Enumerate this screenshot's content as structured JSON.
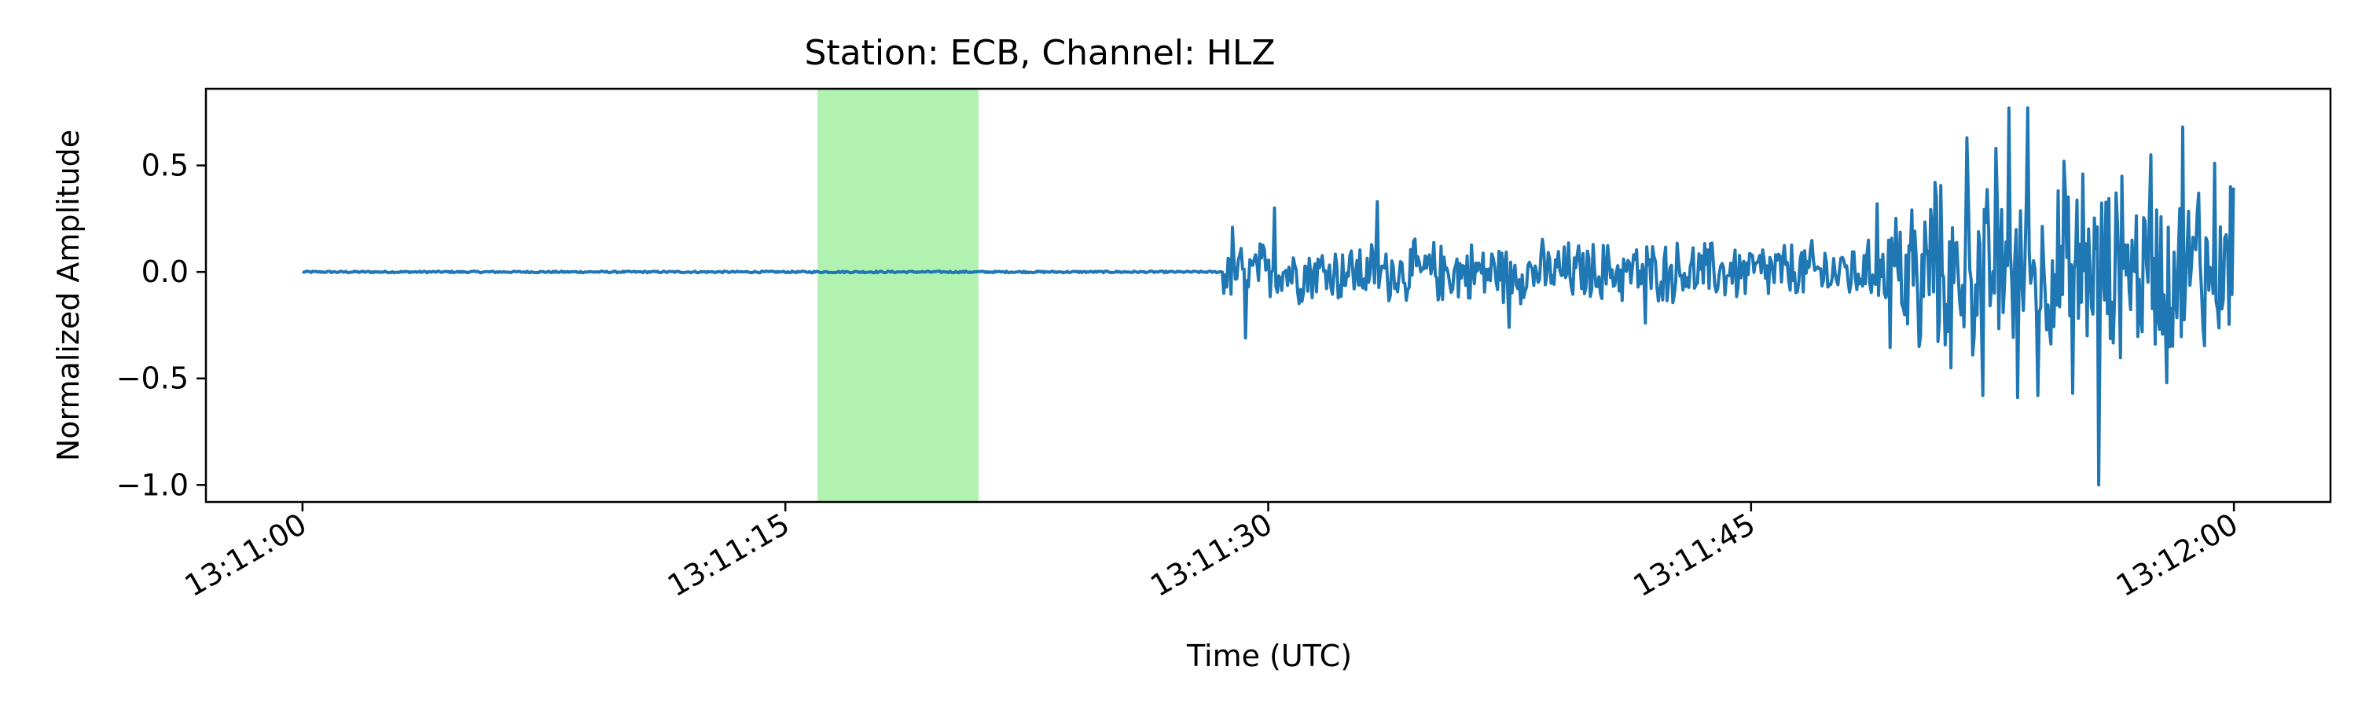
{
  "chart_data": {
    "type": "line",
    "title": "Station: ECB, Channel: HLZ",
    "xlabel": "Time (UTC)",
    "ylabel": "Normalized Amplitude",
    "x_ticks": [
      "13:11:00",
      "13:11:15",
      "13:11:30",
      "13:11:45",
      "13:12:00"
    ],
    "x_tick_seconds": [
      0,
      15,
      30,
      45,
      60
    ],
    "xlim_seconds": [
      -3,
      63
    ],
    "y_ticks": [
      0.5,
      0.0,
      -0.5,
      -1.0
    ],
    "y_tick_labels": [
      "0.5",
      "0.0",
      "−0.5",
      "−1.0"
    ],
    "ylim": [
      -1.08,
      0.86
    ],
    "grid": false,
    "line_color": "#1f77b4",
    "highlight": {
      "start_seconds": 16.0,
      "end_seconds": 21.0,
      "color": "#b2f2b1"
    },
    "series": [
      {
        "segments": [
          {
            "start": 0.0,
            "end": 28.6,
            "amplitude": 0.004
          },
          {
            "start": 28.6,
            "end": 49.2,
            "amplitude": 0.14
          },
          {
            "start": 49.2,
            "end": 60.0,
            "amplitude": 0.38
          }
        ],
        "peaks": [
          {
            "t": 28.9,
            "v": 0.21
          },
          {
            "t": 29.3,
            "v": -0.31
          },
          {
            "t": 30.2,
            "v": 0.3
          },
          {
            "t": 33.4,
            "v": 0.33
          },
          {
            "t": 37.5,
            "v": -0.26
          },
          {
            "t": 41.7,
            "v": -0.24
          },
          {
            "t": 48.9,
            "v": 0.32
          },
          {
            "t": 50.2,
            "v": -0.35
          },
          {
            "t": 50.7,
            "v": 0.42
          },
          {
            "t": 51.2,
            "v": -0.45
          },
          {
            "t": 51.7,
            "v": 0.63
          },
          {
            "t": 52.2,
            "v": -0.58
          },
          {
            "t": 52.6,
            "v": 0.58
          },
          {
            "t": 53.0,
            "v": 0.77
          },
          {
            "t": 53.3,
            "v": -0.59
          },
          {
            "t": 53.6,
            "v": 0.77
          },
          {
            "t": 53.9,
            "v": -0.58
          },
          {
            "t": 54.7,
            "v": 0.52
          },
          {
            "t": 55.0,
            "v": -0.57
          },
          {
            "t": 55.3,
            "v": 0.46
          },
          {
            "t": 55.8,
            "v": -1.0
          },
          {
            "t": 56.5,
            "v": 0.45
          },
          {
            "t": 57.4,
            "v": 0.55
          },
          {
            "t": 57.9,
            "v": -0.52
          },
          {
            "t": 58.4,
            "v": 0.68
          },
          {
            "t": 58.9,
            "v": 0.37
          },
          {
            "t": 59.4,
            "v": 0.51
          },
          {
            "t": 59.9,
            "v": 0.4
          }
        ]
      }
    ]
  }
}
